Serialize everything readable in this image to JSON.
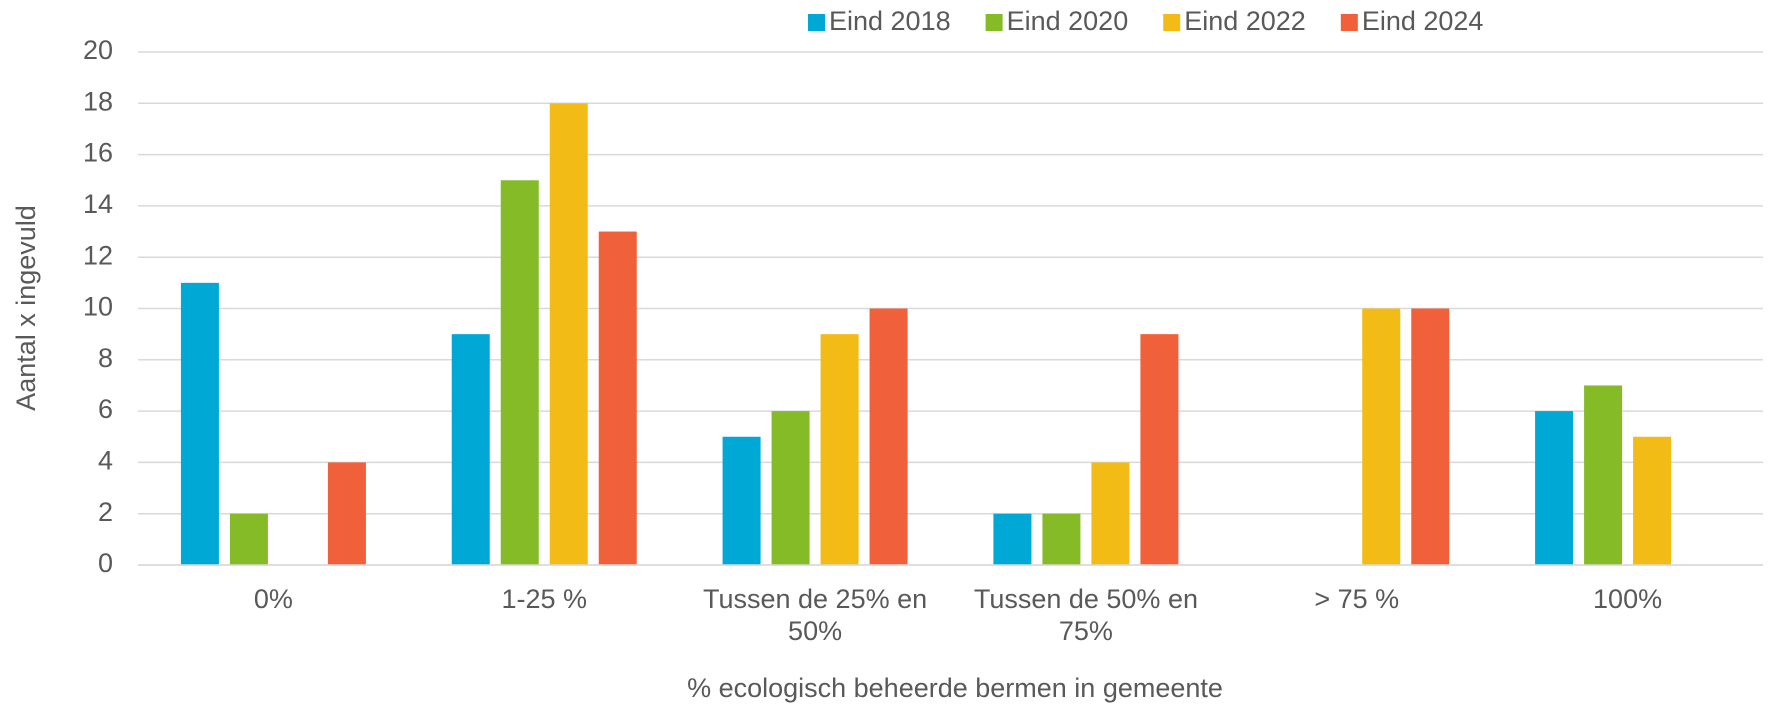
{
  "chart_data": {
    "type": "bar",
    "x_label": "% ecologisch beheerde bermen in gemeente",
    "y_label": "Aantal x ingevuld",
    "categories": [
      "0%",
      "1-25 %",
      "Tussen de 25% en 50%",
      "Tussen de 50% en 75%",
      "> 75 %",
      "100%"
    ],
    "series": [
      {
        "name": "Eind 2018",
        "color": "#00a8d6",
        "values": [
          11,
          9,
          5,
          2,
          0,
          6
        ]
      },
      {
        "name": "Eind 2020",
        "color": "#84bb27",
        "values": [
          2,
          15,
          6,
          2,
          0,
          7
        ]
      },
      {
        "name": "Eind 2022",
        "color": "#f2bb16",
        "values": [
          0,
          18,
          9,
          4,
          10,
          5
        ]
      },
      {
        "name": "Eind 2024",
        "color": "#f0603a",
        "values": [
          4,
          13,
          10,
          9,
          10,
          0
        ]
      }
    ],
    "ylim": [
      0,
      20
    ],
    "yticks": [
      0,
      2,
      4,
      6,
      8,
      10,
      12,
      14,
      16,
      18,
      20
    ],
    "grid": true,
    "legend": "top"
  }
}
